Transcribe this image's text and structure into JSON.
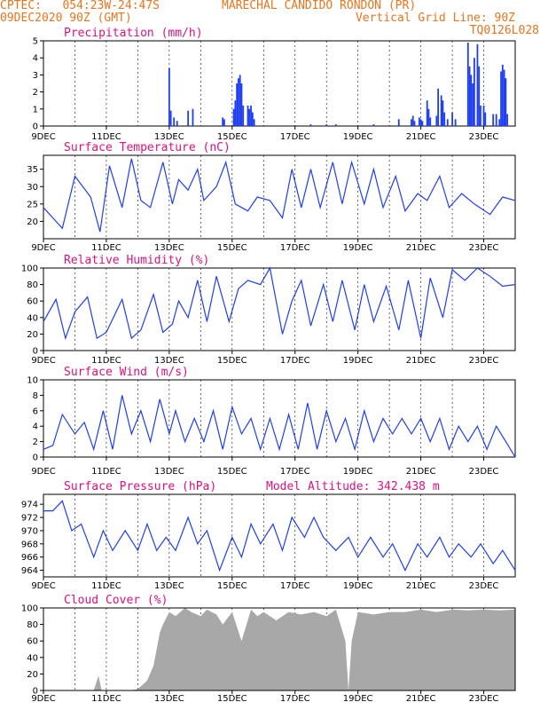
{
  "header": {
    "line1_left": "CPTEC:   054:23W-24:47S",
    "line1_right": "MARECHAL CANDIDO RONDON (PR)",
    "line2_left": "09DEC2020 90Z (GMT)",
    "line2_right": "Vertical Grid Line: 90Z",
    "line3_right": "TQ0126L028"
  },
  "colors": {
    "header": "#e8761e",
    "title": "#e0117f",
    "series": "#1f3ff0",
    "cloud": "#a8a8a8"
  },
  "x_axis": {
    "labels": [
      "9DEC",
      "11DEC",
      "13DEC",
      "15DEC",
      "17DEC",
      "19DEC",
      "21DEC",
      "23DEC"
    ],
    "day_range": [
      9,
      24
    ]
  },
  "chart_data": [
    {
      "type": "bar",
      "title": "Precipitation (mm/h)",
      "ylim": [
        0,
        5
      ],
      "yticks": [
        0,
        1,
        2,
        3,
        4,
        5
      ],
      "grid": "dashed vertical",
      "x_days": [
        13.0,
        13.05,
        13.15,
        13.25,
        13.6,
        13.75,
        14.7,
        14.75,
        15.05,
        15.1,
        15.15,
        15.2,
        15.25,
        15.3,
        15.35,
        15.5,
        15.55,
        15.6,
        15.65,
        15.7,
        17.5,
        18.0,
        18.3,
        19.5,
        20.3,
        20.7,
        20.75,
        20.8,
        20.95,
        21.0,
        21.05,
        21.2,
        21.25,
        21.3,
        21.5,
        21.55,
        21.65,
        21.7,
        21.75,
        21.85,
        22.0,
        22.1,
        22.5,
        22.55,
        22.6,
        22.65,
        22.7,
        22.8,
        22.85,
        22.9,
        23.0,
        23.05,
        23.3,
        23.4,
        23.5,
        23.55,
        23.6,
        23.65,
        23.7,
        23.75
      ],
      "values": [
        3.4,
        0.9,
        0.5,
        0.3,
        0.9,
        1.0,
        0.5,
        0.4,
        1.0,
        1.5,
        2.5,
        2.8,
        3.0,
        2.5,
        1.2,
        1.2,
        1.0,
        1.2,
        0.8,
        0.4,
        0.1,
        0.1,
        0.1,
        0.1,
        0.4,
        0.4,
        0.6,
        0.3,
        0.5,
        0.4,
        0.3,
        1.5,
        1.0,
        0.5,
        0.6,
        2.2,
        1.8,
        1.5,
        0.8,
        0.4,
        0.8,
        0.4,
        4.9,
        3.5,
        3.0,
        2.5,
        4.0,
        4.8,
        3.5,
        1.2,
        1.2,
        0.8,
        0.7,
        0.7,
        0.4,
        3.2,
        3.6,
        3.3,
        2.8,
        0.7
      ]
    },
    {
      "type": "line",
      "title": "Surface Temperature (nC)",
      "ylim": [
        15,
        39
      ],
      "yticks": [
        20,
        25,
        30,
        35
      ],
      "x_days": [
        9.0,
        9.3,
        9.6,
        10.0,
        10.5,
        10.8,
        11.1,
        11.5,
        11.8,
        12.1,
        12.4,
        12.8,
        13.1,
        13.3,
        13.6,
        13.9,
        14.1,
        14.5,
        14.8,
        15.1,
        15.5,
        15.8,
        16.2,
        16.6,
        16.9,
        17.2,
        17.5,
        17.8,
        18.2,
        18.5,
        18.8,
        19.2,
        19.5,
        19.8,
        20.2,
        20.5,
        20.9,
        21.2,
        21.6,
        21.9,
        22.3,
        22.7,
        23.2,
        23.6,
        24.0
      ],
      "values": [
        24,
        21,
        18,
        33,
        27,
        17,
        36,
        24,
        38,
        26,
        24,
        37,
        25,
        32,
        29,
        35,
        26,
        30,
        37,
        25,
        23,
        27,
        26,
        21,
        35,
        24,
        35,
        24,
        37,
        25,
        37,
        25,
        35,
        24,
        33,
        23,
        28,
        26,
        33,
        24,
        28,
        25,
        22,
        27,
        26
      ]
    },
    {
      "type": "line",
      "title": "Relative Humidity (%)",
      "ylim": [
        0,
        100
      ],
      "yticks": [
        0,
        20,
        40,
        60,
        80,
        100
      ],
      "x_days": [
        9.0,
        9.4,
        9.7,
        10.0,
        10.4,
        10.7,
        11.0,
        11.5,
        11.8,
        12.1,
        12.5,
        12.8,
        13.1,
        13.3,
        13.6,
        13.9,
        14.2,
        14.5,
        14.9,
        15.2,
        15.5,
        15.9,
        16.2,
        16.6,
        16.9,
        17.2,
        17.5,
        17.9,
        18.2,
        18.5,
        18.9,
        19.2,
        19.5,
        19.9,
        20.3,
        20.6,
        21.0,
        21.3,
        21.7,
        22.0,
        22.4,
        22.8,
        23.2,
        23.6,
        24.0
      ],
      "values": [
        35,
        62,
        15,
        47,
        65,
        15,
        22,
        62,
        15,
        25,
        68,
        22,
        32,
        60,
        40,
        85,
        35,
        90,
        35,
        75,
        85,
        80,
        100,
        20,
        60,
        85,
        30,
        80,
        35,
        85,
        25,
        80,
        35,
        78,
        25,
        85,
        15,
        88,
        40,
        98,
        85,
        100,
        90,
        78,
        80
      ]
    },
    {
      "type": "line",
      "title": "Surface Wind (m/s)",
      "ylim": [
        0,
        10
      ],
      "yticks": [
        0,
        2,
        4,
        6,
        8,
        10
      ],
      "x_days": [
        9.0,
        9.3,
        9.6,
        10.0,
        10.3,
        10.6,
        10.9,
        11.2,
        11.5,
        11.8,
        12.1,
        12.4,
        12.7,
        13.0,
        13.2,
        13.5,
        13.8,
        14.1,
        14.4,
        14.7,
        15.0,
        15.3,
        15.6,
        15.9,
        16.2,
        16.5,
        16.8,
        17.1,
        17.4,
        17.7,
        18.0,
        18.3,
        18.6,
        18.9,
        19.2,
        19.5,
        19.8,
        20.1,
        20.4,
        20.7,
        21.0,
        21.3,
        21.6,
        21.9,
        22.2,
        22.5,
        22.8,
        23.1,
        23.4,
        23.7,
        24.0
      ],
      "values": [
        1,
        1.5,
        5.5,
        3,
        4.5,
        1,
        6,
        1,
        8,
        3,
        6,
        2,
        7.5,
        3,
        6,
        2,
        5,
        2,
        6,
        1,
        6.5,
        3,
        5,
        1,
        5,
        1,
        5.5,
        1,
        7,
        1,
        6,
        2,
        5,
        1,
        6,
        2,
        5,
        3,
        5,
        3,
        5,
        2,
        5,
        1,
        4,
        2,
        4,
        1,
        4,
        2,
        0
      ]
    },
    {
      "type": "line",
      "title": "Surface Pressure (hPa)",
      "annotation": "Model Altitude: 342.438 m",
      "ylim": [
        963,
        975.5
      ],
      "yticks": [
        964,
        966,
        968,
        970,
        972,
        974
      ],
      "x_days": [
        9.0,
        9.3,
        9.6,
        9.9,
        10.2,
        10.6,
        10.9,
        11.2,
        11.6,
        12.0,
        12.3,
        12.6,
        12.9,
        13.2,
        13.6,
        13.9,
        14.2,
        14.6,
        15.0,
        15.3,
        15.6,
        15.9,
        16.3,
        16.6,
        16.9,
        17.3,
        17.6,
        17.9,
        18.3,
        18.7,
        19.0,
        19.4,
        19.8,
        20.1,
        20.5,
        20.9,
        21.2,
        21.6,
        21.9,
        22.2,
        22.6,
        22.9,
        23.3,
        23.6,
        24.0
      ],
      "values": [
        973,
        973,
        974.5,
        970,
        971,
        966,
        970,
        967,
        970,
        967,
        971,
        967,
        969,
        967,
        972,
        968,
        970,
        964,
        969,
        966,
        971,
        968,
        971,
        967,
        972,
        969,
        972,
        969,
        967,
        969,
        966,
        969,
        966,
        968,
        964,
        968,
        966,
        969,
        966,
        968,
        966,
        968,
        965,
        967,
        964
      ]
    },
    {
      "type": "area",
      "title": "Cloud Cover (%)",
      "ylim": [
        0,
        100
      ],
      "yticks": [
        0,
        20,
        40,
        60,
        80,
        100
      ],
      "x_days": [
        9.0,
        10.6,
        10.75,
        10.85,
        10.9,
        11.0,
        11.8,
        12.0,
        12.1,
        12.3,
        12.5,
        12.6,
        12.7,
        12.8,
        13.0,
        13.2,
        13.5,
        13.7,
        14.0,
        14.2,
        14.5,
        14.7,
        15.0,
        15.3,
        15.6,
        15.8,
        16.0,
        16.4,
        16.8,
        17.2,
        17.6,
        18.0,
        18.3,
        18.6,
        18.7,
        18.8,
        19.0,
        19.5,
        20.0,
        20.5,
        21.0,
        21.5,
        22.0,
        22.5,
        23.0,
        23.5,
        24.0
      ],
      "values": [
        0,
        0,
        18,
        0,
        0,
        0,
        0,
        2,
        5,
        12,
        30,
        50,
        70,
        80,
        95,
        90,
        100,
        95,
        90,
        98,
        92,
        80,
        95,
        60,
        98,
        90,
        95,
        85,
        95,
        92,
        95,
        90,
        98,
        60,
        0,
        60,
        95,
        92,
        95,
        95,
        98,
        95,
        98,
        97,
        98,
        97,
        98
      ]
    }
  ]
}
